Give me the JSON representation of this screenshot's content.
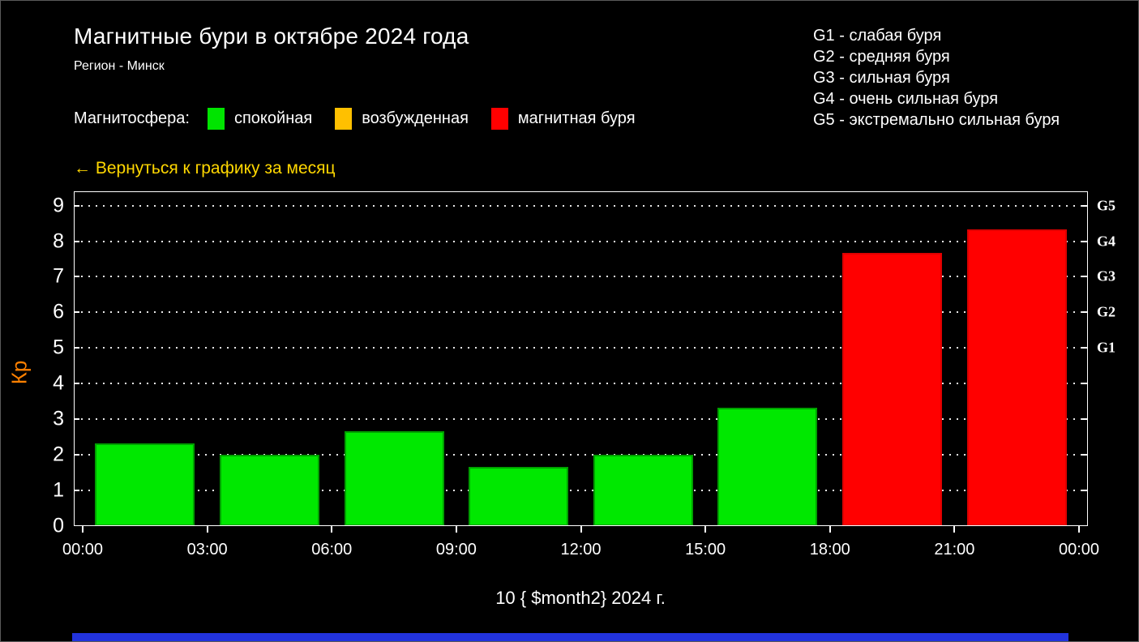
{
  "header": {
    "title": "Магнитные бури в октябре 2024 года",
    "subtitle": "Регион - Минск"
  },
  "magnetosphere_legend": {
    "label": "Магнитосфера:",
    "items": [
      {
        "label": "спокойная",
        "color": "#00e400"
      },
      {
        "label": "возбужденная",
        "color": "#ffc000"
      },
      {
        "label": "магнитная буря",
        "color": "#ff0000"
      }
    ]
  },
  "storm_scale_legend": {
    "items": [
      "G1 - слабая буря",
      "G2 - средняя буря",
      "G3 - сильная буря",
      "G4 - очень сильная буря",
      "G5 - экстремально сильная буря"
    ]
  },
  "back_link": {
    "label": "← Вернуться к графику за месяц",
    "color": "#ffd700"
  },
  "chart_data": {
    "type": "bar",
    "title": "Магнитные бури в октябре 2024 года",
    "xlabel": "10 { $month2} 2024 г.",
    "ylabel": "Кр",
    "ylabel_color": "#ff8000",
    "x_ticks": [
      "00:00",
      "03:00",
      "06:00",
      "09:00",
      "12:00",
      "15:00",
      "18:00",
      "21:00",
      "00:00"
    ],
    "y_ticks": [
      0,
      1,
      2,
      3,
      4,
      5,
      6,
      7,
      8,
      9
    ],
    "ylim": [
      0,
      9.4
    ],
    "grid": "dotted horizontal, white on black",
    "legend_position": "top",
    "right_axis_labels": [
      {
        "label": "G5",
        "value": 9
      },
      {
        "label": "G4",
        "value": 8
      },
      {
        "label": "G3",
        "value": 7
      },
      {
        "label": "G2",
        "value": 6
      },
      {
        "label": "G1",
        "value": 5
      }
    ],
    "bars": [
      {
        "time_start": "00:00",
        "value": 2.33,
        "status": "спокойная",
        "color": "#00e800",
        "edge": "#00a000"
      },
      {
        "time_start": "03:00",
        "value": 2.0,
        "status": "спокойная",
        "color": "#00e800",
        "edge": "#00a000"
      },
      {
        "time_start": "06:00",
        "value": 2.67,
        "status": "спокойная",
        "color": "#00e800",
        "edge": "#00a000"
      },
      {
        "time_start": "09:00",
        "value": 1.67,
        "status": "спокойная",
        "color": "#00e800",
        "edge": "#00a000"
      },
      {
        "time_start": "12:00",
        "value": 2.0,
        "status": "спокойная",
        "color": "#00e800",
        "edge": "#00a000"
      },
      {
        "time_start": "15:00",
        "value": 3.33,
        "status": "спокойная",
        "color": "#00e800",
        "edge": "#00a000"
      },
      {
        "time_start": "18:00",
        "value": 7.67,
        "status": "магнитная буря",
        "color": "#ff0000",
        "edge": "#dd0000"
      },
      {
        "time_start": "21:00",
        "value": 8.33,
        "status": "магнитная буря",
        "color": "#ff0000",
        "edge": "#dd0000"
      }
    ]
  },
  "bottom_bar_color": "#2233dd"
}
